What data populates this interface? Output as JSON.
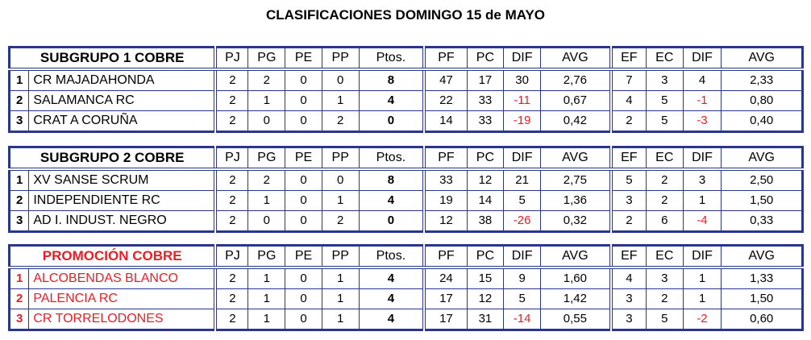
{
  "title": "CLASIFICACIONES DOMINGO 15 de MAYO",
  "colors": {
    "border": "#28378C",
    "text": "#000000",
    "negative": "#ED1C24",
    "promo": "#ED1C24"
  },
  "column_headers": [
    "PJ",
    "PG",
    "PE",
    "PP",
    "Ptos.",
    "PF",
    "PC",
    "DIF",
    "AVG",
    "EF",
    "EC",
    "DIF",
    "AVG"
  ],
  "tables": [
    {
      "group_title": "SUBGRUPO 1 COBRE",
      "style": "normal",
      "rows": [
        {
          "pos": "1",
          "team": "CR MAJADAHONDA",
          "values": [
            "2",
            "2",
            "0",
            "0",
            "8",
            "47",
            "17",
            "30",
            "2,76",
            "7",
            "3",
            "4",
            "2,33"
          ]
        },
        {
          "pos": "2",
          "team": "SALAMANCA RC",
          "values": [
            "2",
            "1",
            "0",
            "1",
            "4",
            "22",
            "33",
            "-11",
            "0,67",
            "4",
            "5",
            "-1",
            "0,80"
          ]
        },
        {
          "pos": "3",
          "team": "CRAT A CORUÑA",
          "values": [
            "2",
            "0",
            "0",
            "2",
            "0",
            "14",
            "33",
            "-19",
            "0,42",
            "2",
            "5",
            "-3",
            "0,40"
          ]
        }
      ]
    },
    {
      "group_title": "SUBGRUPO 2 COBRE",
      "style": "normal",
      "rows": [
        {
          "pos": "1",
          "team": "XV SANSE SCRUM",
          "values": [
            "2",
            "2",
            "0",
            "0",
            "8",
            "33",
            "12",
            "21",
            "2,75",
            "5",
            "2",
            "3",
            "2,50"
          ]
        },
        {
          "pos": "2",
          "team": "INDEPENDIENTE RC",
          "values": [
            "2",
            "1",
            "0",
            "1",
            "4",
            "19",
            "14",
            "5",
            "1,36",
            "3",
            "2",
            "1",
            "1,50"
          ]
        },
        {
          "pos": "3",
          "team": "AD I. INDUST. NEGRO",
          "values": [
            "2",
            "0",
            "0",
            "2",
            "0",
            "12",
            "38",
            "-26",
            "0,32",
            "2",
            "6",
            "-4",
            "0,33"
          ]
        }
      ]
    },
    {
      "group_title": "PROMOCIÓN COBRE",
      "style": "promo",
      "rows": [
        {
          "pos": "1",
          "team": "ALCOBENDAS BLANCO",
          "values": [
            "2",
            "1",
            "0",
            "1",
            "4",
            "24",
            "15",
            "9",
            "1,60",
            "4",
            "3",
            "1",
            "1,33"
          ]
        },
        {
          "pos": "2",
          "team": "PALENCIA RC",
          "values": [
            "2",
            "1",
            "0",
            "1",
            "4",
            "17",
            "12",
            "5",
            "1,42",
            "3",
            "2",
            "1",
            "1,50"
          ]
        },
        {
          "pos": "3",
          "team": "CR TORRELODONES",
          "values": [
            "2",
            "1",
            "0",
            "1",
            "4",
            "17",
            "31",
            "-14",
            "0,55",
            "3",
            "5",
            "-2",
            "0,60"
          ]
        }
      ]
    }
  ]
}
